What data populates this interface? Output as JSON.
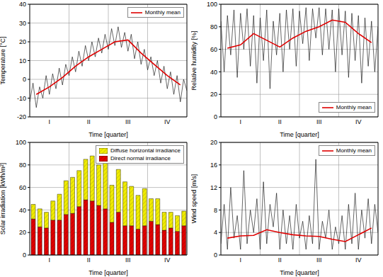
{
  "chart_data": [
    {
      "type": "line",
      "y_label": "Temperature [°C]",
      "x_label": "Time [quarter]",
      "xlim": [
        0,
        12
      ],
      "xticks": [
        {
          "value": 1.5,
          "label": "I"
        },
        {
          "value": 4.5,
          "label": "II"
        },
        {
          "value": 7.5,
          "label": "III"
        },
        {
          "value": 10.5,
          "label": "IV"
        }
      ],
      "ylim": [
        -20,
        40
      ],
      "yticks": [
        -20,
        -10,
        0,
        10,
        20,
        30,
        40
      ],
      "grid": true,
      "legend": "upper right",
      "series": [
        {
          "color": "#000000",
          "x": [
            0,
            0.25,
            0.5,
            0.75,
            1,
            1.25,
            1.5,
            1.75,
            2,
            2.25,
            2.5,
            2.75,
            3,
            3.25,
            3.5,
            3.75,
            4,
            4.25,
            4.5,
            4.75,
            5,
            5.25,
            5.5,
            5.75,
            6,
            6.25,
            6.5,
            6.75,
            7,
            7.25,
            7.5,
            7.75,
            8,
            8.25,
            8.5,
            8.75,
            9,
            9.25,
            9.5,
            9.75,
            10,
            10.25,
            10.5,
            10.75,
            11,
            11.25,
            11.5,
            11.75,
            12
          ],
          "values": [
            -12,
            -2,
            -15,
            -4,
            -10,
            2,
            -8,
            3,
            -5,
            6,
            -3,
            8,
            2,
            12,
            4,
            15,
            7,
            18,
            10,
            20,
            12,
            22,
            14,
            24,
            16,
            27,
            18,
            28,
            17,
            25,
            15,
            24,
            11,
            20,
            8,
            16,
            5,
            12,
            2,
            10,
            -2,
            7,
            -5,
            4,
            -8,
            2,
            -12,
            0,
            -6
          ]
        },
        {
          "name": "Monthly mean",
          "color": "#e00000",
          "x": [
            0.5,
            1.5,
            2.5,
            3.5,
            4.5,
            5.5,
            6.5,
            7.5,
            8.5,
            9.5,
            10.5,
            11.5
          ],
          "values": [
            -8,
            -4,
            1,
            7,
            12,
            16,
            20,
            21,
            14,
            8,
            2,
            -3
          ]
        }
      ]
    },
    {
      "type": "line",
      "y_label": "Relative humidity [%]",
      "x_label": "Time [quarter]",
      "xlim": [
        0,
        12
      ],
      "xticks": [
        {
          "value": 1.5,
          "label": "I"
        },
        {
          "value": 4.5,
          "label": "II"
        },
        {
          "value": 7.5,
          "label": "III"
        },
        {
          "value": 10.5,
          "label": "IV"
        }
      ],
      "ylim": [
        0,
        100
      ],
      "yticks": [
        0,
        20,
        40,
        60,
        80,
        100
      ],
      "grid": true,
      "legend": "lower right",
      "series": [
        {
          "color": "#000000",
          "x": [
            0,
            0.25,
            0.5,
            0.75,
            1,
            1.25,
            1.5,
            1.75,
            2,
            2.25,
            2.5,
            2.75,
            3,
            3.25,
            3.5,
            3.75,
            4,
            4.25,
            4.5,
            4.75,
            5,
            5.25,
            5.5,
            5.75,
            6,
            6.25,
            6.5,
            6.75,
            7,
            7.25,
            7.5,
            7.75,
            8,
            8.25,
            8.5,
            8.75,
            9,
            9.25,
            9.5,
            9.75,
            10,
            10.25,
            10.5,
            10.75,
            11,
            11.25,
            11.5,
            11.75,
            12
          ],
          "values": [
            85,
            40,
            90,
            55,
            95,
            35,
            92,
            60,
            96,
            45,
            90,
            30,
            88,
            50,
            95,
            25,
            85,
            55,
            92,
            40,
            95,
            60,
            96,
            45,
            94,
            65,
            97,
            50,
            96,
            70,
            97,
            55,
            96,
            60,
            95,
            40,
            96,
            55,
            94,
            35,
            92,
            50,
            90,
            30,
            88,
            45,
            85,
            40,
            80
          ]
        },
        {
          "name": "Monthly mean",
          "color": "#e00000",
          "x": [
            0.5,
            1.5,
            2.5,
            3.5,
            4.5,
            5.5,
            6.5,
            7.5,
            8.5,
            9.5,
            10.5,
            11.5
          ],
          "values": [
            61,
            64,
            74,
            68,
            62,
            70,
            76,
            80,
            86,
            84,
            74,
            66
          ]
        }
      ]
    },
    {
      "type": "bar",
      "stacked": true,
      "y_label": "Solar irradiation [kWh/m²]",
      "x_label": "Time [quarter]",
      "xlim": [
        0,
        12
      ],
      "xticks": [
        {
          "value": 1.5,
          "label": "I"
        },
        {
          "value": 4.5,
          "label": "II"
        },
        {
          "value": 7.5,
          "label": "III"
        },
        {
          "value": 10.5,
          "label": "IV"
        }
      ],
      "ylim": [
        0,
        100
      ],
      "yticks": [
        0,
        20,
        40,
        60,
        80,
        100
      ],
      "grid": true,
      "legend": "upper right",
      "x": [
        0.25,
        0.75,
        1.25,
        1.75,
        2.25,
        2.75,
        3.25,
        3.75,
        4.25,
        4.75,
        5.25,
        5.75,
        6.25,
        6.75,
        7.25,
        7.75,
        8.25,
        8.75,
        9.25,
        9.75,
        10.25,
        10.75,
        11.25,
        11.75
      ],
      "series": [
        {
          "name": "Diffuse horizontal irradiance",
          "color": "#f0ec00",
          "values": [
            13,
            16,
            14,
            17,
            23,
            30,
            32,
            32,
            36,
            40,
            36,
            42,
            33,
            38,
            39,
            35,
            30,
            33,
            20,
            23,
            16,
            14,
            14,
            13
          ]
        },
        {
          "name": "Direct normal irradiance",
          "color": "#e00000",
          "values": [
            32,
            25,
            24,
            31,
            31,
            36,
            37,
            43,
            49,
            48,
            44,
            41,
            29,
            38,
            26,
            26,
            23,
            26,
            30,
            27,
            22,
            24,
            21,
            26
          ]
        }
      ]
    },
    {
      "type": "line",
      "y_label": "Wind speed [m/s]",
      "x_label": "Time [quarter]",
      "xlim": [
        0,
        12
      ],
      "xticks": [
        {
          "value": 1.5,
          "label": "I"
        },
        {
          "value": 4.5,
          "label": "II"
        },
        {
          "value": 7.5,
          "label": "III"
        },
        {
          "value": 10.5,
          "label": "IV"
        }
      ],
      "ylim": [
        0,
        20
      ],
      "yticks": [
        0,
        4,
        8,
        12,
        16,
        20
      ],
      "grid": true,
      "legend": "upper right",
      "series": [
        {
          "color": "#000000",
          "x": [
            0,
            0.25,
            0.5,
            0.75,
            1,
            1.25,
            1.5,
            1.75,
            2,
            2.25,
            2.5,
            2.75,
            3,
            3.25,
            3.5,
            3.75,
            4,
            4.25,
            4.5,
            4.75,
            5,
            5.25,
            5.5,
            5.75,
            6,
            6.25,
            6.5,
            6.75,
            7,
            7.25,
            7.5,
            7.75,
            8,
            8.25,
            8.5,
            8.75,
            9,
            9.25,
            9.5,
            9.75,
            10,
            10.25,
            10.5,
            10.75,
            11,
            11.25,
            11.5,
            11.75,
            12
          ],
          "values": [
            2,
            9,
            1,
            12,
            3,
            7,
            1,
            15,
            2,
            8,
            4,
            10,
            1,
            13,
            2,
            9,
            5,
            11,
            1,
            8,
            2,
            7,
            1,
            9,
            3,
            6,
            1,
            7,
            2,
            17,
            1,
            6,
            3,
            8,
            1,
            5,
            2,
            7,
            1,
            9,
            2,
            11,
            1,
            8,
            3,
            10,
            2,
            9,
            4
          ]
        },
        {
          "name": "Monthly mean",
          "color": "#e00000",
          "x": [
            0.5,
            1.5,
            2.5,
            3.5,
            4.5,
            5.5,
            6.5,
            7.5,
            8.5,
            9.5,
            10.5,
            11.5
          ],
          "values": [
            3,
            3.4,
            3.5,
            4.5,
            4,
            3.6,
            3.4,
            3.3,
            2.8,
            2.4,
            3.6,
            4.8
          ]
        }
      ]
    }
  ]
}
